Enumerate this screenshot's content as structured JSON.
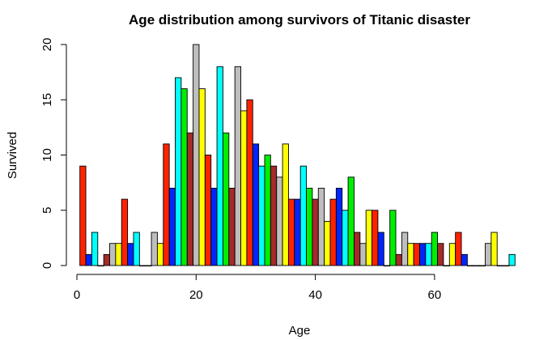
{
  "chart_data": {
    "type": "bar",
    "title": "Age distribution among survivors of Titanic disaster",
    "xlabel": "Age",
    "ylabel": "Survived",
    "xlim": [
      0,
      74
    ],
    "ylim": [
      0,
      20
    ],
    "x_ticks": [
      0,
      20,
      40,
      60
    ],
    "y_ticks": [
      0,
      5,
      10,
      15,
      20
    ],
    "grid": false,
    "legend": "none",
    "palette": [
      "#ff2200",
      "#0026ff",
      "#00ffff",
      "#00ee00",
      "#a52a2a",
      "#bebebe",
      "#ffff00"
    ],
    "ages": [
      1,
      2,
      3,
      4,
      5,
      6,
      7,
      8,
      9,
      10,
      11,
      12,
      13,
      14,
      15,
      16,
      17,
      18,
      19,
      20,
      21,
      22,
      23,
      24,
      25,
      26,
      27,
      28,
      29,
      30,
      31,
      32,
      33,
      34,
      35,
      36,
      37,
      38,
      39,
      40,
      41,
      42,
      43,
      44,
      45,
      46,
      47,
      48,
      49,
      50,
      51,
      52,
      53,
      54,
      55,
      56,
      57,
      58,
      59,
      60,
      61,
      62,
      63,
      64,
      65,
      66,
      67,
      68,
      69,
      70,
      71,
      72,
      73
    ],
    "values": [
      9,
      1,
      3,
      0,
      1,
      2,
      2,
      6,
      2,
      3,
      0,
      0,
      3,
      2,
      11,
      7,
      17,
      16,
      12,
      20,
      16,
      10,
      7,
      18,
      12,
      7,
      18,
      14,
      15,
      11,
      9,
      10,
      9,
      8,
      11,
      6,
      6,
      9,
      7,
      6,
      7,
      4,
      6,
      7,
      5,
      8,
      3,
      2,
      5,
      5,
      3,
      0,
      5,
      1,
      3,
      2,
      2,
      2,
      2,
      3,
      2,
      0,
      2,
      3,
      1,
      0,
      0,
      0,
      2,
      3,
      0,
      0,
      1
    ]
  }
}
